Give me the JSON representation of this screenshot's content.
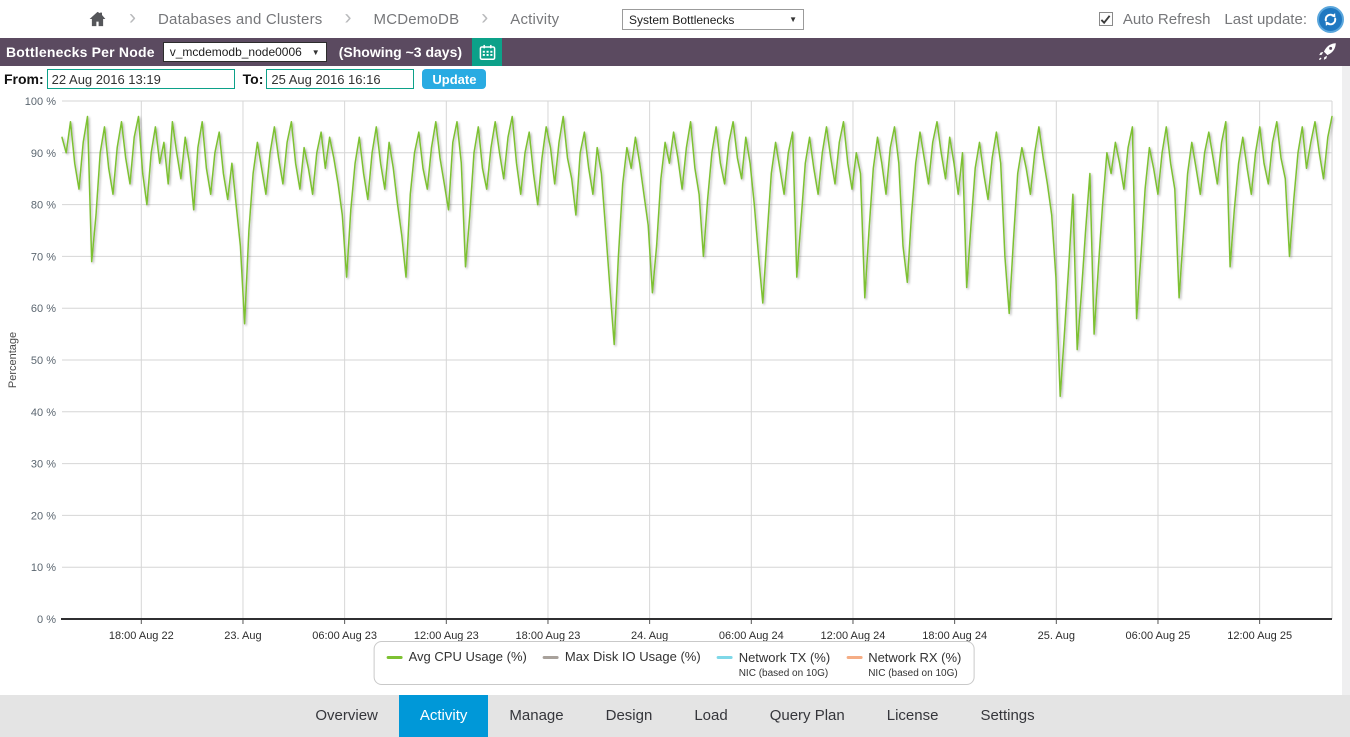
{
  "header": {
    "breadcrumb": [
      "Databases and Clusters",
      "MCDemoDB",
      "Activity"
    ],
    "view_select": {
      "value": "System Bottlenecks"
    },
    "auto_refresh_label": "Auto Refresh",
    "auto_refresh_checked": true,
    "last_update_label": "Last update:"
  },
  "toolbar": {
    "title": "Bottlenecks Per Node",
    "node_select": {
      "value": "v_mcdemodb_node0006"
    },
    "showing_label": "(Showing ~3 days)"
  },
  "filters": {
    "from_label": "From:",
    "from_value": "22 Aug 2016 13:19",
    "to_label": "To:",
    "to_value": "25 Aug 2016 16:16",
    "update_label": "Update"
  },
  "chart_data": {
    "type": "line",
    "title": "",
    "xlabel": "",
    "ylabel": "Percentage",
    "ylim": [
      0,
      100
    ],
    "y_tick_step": 10,
    "y_tick_suffix": " %",
    "grid": true,
    "legend_position": "bottom",
    "x_start": "22 Aug 2016 13:19",
    "x_end": "25 Aug 2016 16:16",
    "x_range_hours": 74.95,
    "x_ticks": [
      {
        "t": 4.68,
        "label": "18:00 Aug 22"
      },
      {
        "t": 10.68,
        "label": "23. Aug"
      },
      {
        "t": 16.68,
        "label": "06:00 Aug 23"
      },
      {
        "t": 22.68,
        "label": "12:00 Aug 23"
      },
      {
        "t": 28.68,
        "label": "18:00 Aug 23"
      },
      {
        "t": 34.68,
        "label": "24. Aug"
      },
      {
        "t": 40.68,
        "label": "06:00 Aug 24"
      },
      {
        "t": 46.68,
        "label": "12:00 Aug 24"
      },
      {
        "t": 52.68,
        "label": "18:00 Aug 24"
      },
      {
        "t": 58.68,
        "label": "25. Aug"
      },
      {
        "t": 64.68,
        "label": "06:00 Aug 25"
      },
      {
        "t": 70.68,
        "label": "12:00 Aug 25"
      }
    ],
    "colors": {
      "grid": "#d6d6d6",
      "axis": "#2f2f31",
      "tick": "#565656"
    },
    "series": [
      {
        "name": "Avg CPU Usage (%)",
        "color": "#7dc132",
        "visible": true,
        "values": [
          93,
          90,
          96,
          88,
          83,
          92,
          97,
          69,
          78,
          90,
          95,
          87,
          82,
          91,
          96,
          89,
          84,
          93,
          97,
          86,
          80,
          90,
          95,
          88,
          92,
          84,
          96,
          90,
          85,
          93,
          88,
          79,
          91,
          96,
          87,
          82,
          90,
          94,
          86,
          81,
          88,
          80,
          72,
          57,
          75,
          86,
          92,
          87,
          82,
          90,
          95,
          89,
          84,
          92,
          96,
          88,
          83,
          91,
          87,
          82,
          90,
          94,
          87,
          93,
          89,
          84,
          78,
          66,
          79,
          88,
          93,
          86,
          81,
          90,
          95,
          88,
          83,
          92,
          87,
          80,
          74,
          66,
          82,
          90,
          94,
          87,
          83,
          91,
          96,
          89,
          84,
          79,
          92,
          96,
          88,
          68,
          78,
          90,
          95,
          87,
          83,
          91,
          96,
          90,
          85,
          93,
          97,
          88,
          82,
          90,
          94,
          86,
          80,
          89,
          95,
          91,
          84,
          92,
          97,
          89,
          85,
          78,
          90,
          94,
          87,
          82,
          91,
          86,
          75,
          64,
          53,
          70,
          84,
          91,
          87,
          93,
          88,
          82,
          76,
          63,
          72,
          85,
          92,
          88,
          94,
          89,
          83,
          91,
          96,
          87,
          82,
          70,
          81,
          90,
          95,
          88,
          84,
          92,
          96,
          89,
          85,
          93,
          88,
          80,
          70,
          61,
          74,
          86,
          92,
          87,
          82,
          90,
          94,
          66,
          77,
          88,
          93,
          87,
          82,
          90,
          95,
          89,
          84,
          92,
          96,
          88,
          83,
          90,
          86,
          62,
          75,
          87,
          93,
          88,
          82,
          91,
          95,
          88,
          72,
          65,
          78,
          88,
          94,
          89,
          84,
          92,
          96,
          90,
          85,
          93,
          88,
          82,
          90,
          64,
          76,
          87,
          92,
          86,
          81,
          89,
          94,
          88,
          70,
          59,
          73,
          86,
          91,
          87,
          82,
          90,
          95,
          89,
          84,
          78,
          66,
          43,
          55,
          68,
          82,
          52,
          63,
          75,
          86,
          55,
          68,
          80,
          90,
          86,
          92,
          88,
          83,
          91,
          95,
          58,
          70,
          83,
          91,
          87,
          82,
          90,
          95,
          88,
          83,
          62,
          74,
          86,
          92,
          87,
          82,
          90,
          94,
          89,
          84,
          92,
          96,
          68,
          79,
          88,
          93,
          87,
          82,
          90,
          95,
          88,
          84,
          92,
          96,
          89,
          85,
          70,
          81,
          90,
          95,
          87,
          92,
          96,
          90,
          85,
          93,
          97
        ]
      },
      {
        "name": "Max Disk IO Usage (%)",
        "color": "#a8a19b",
        "visible": false,
        "values": []
      },
      {
        "name": "Network TX (%)",
        "sublabel": "NIC (based on 10G)",
        "color": "#7fd8e8",
        "visible": false,
        "values": []
      },
      {
        "name": "Network RX (%)",
        "sublabel": "NIC (based on 10G)",
        "color": "#f5ad85",
        "visible": false,
        "values": []
      }
    ]
  },
  "colors": {
    "purple_bar": "#5b4a60",
    "teal_accent": "#0ca189",
    "update_blue": "#29abe2",
    "active_tab_blue": "#0098d8",
    "refresh_blue": "#1f78c1",
    "tabbar_gray": "#e4e4e4"
  },
  "footer": {
    "tabs": [
      "Overview",
      "Activity",
      "Manage",
      "Design",
      "Load",
      "Query Plan",
      "License",
      "Settings"
    ],
    "active": "Activity",
    "active_index": 1
  }
}
